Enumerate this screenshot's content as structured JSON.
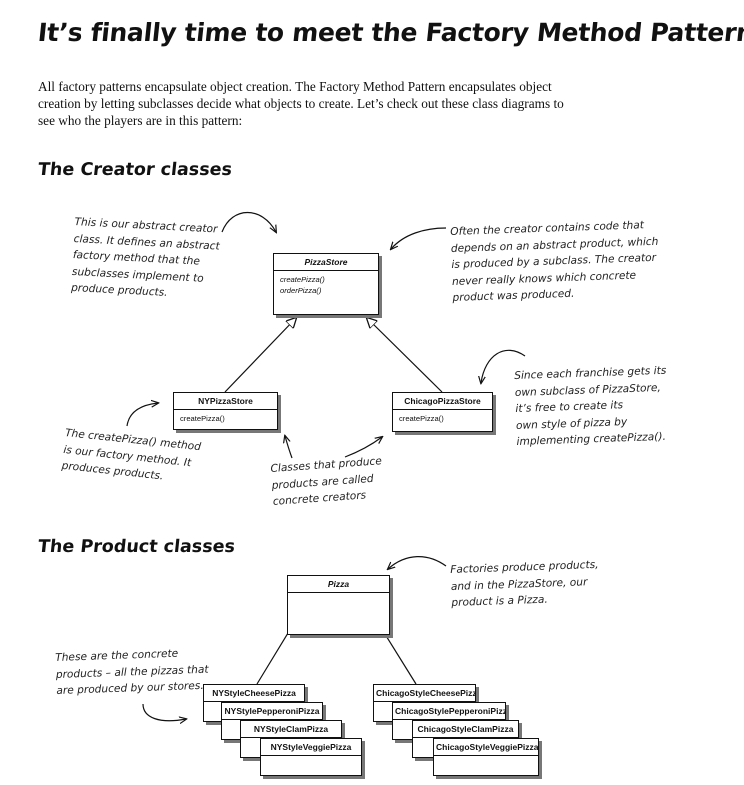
{
  "title": "It’s finally time to meet the Factory Method Pattern",
  "intro": "All factory patterns encapsulate object creation.  The Factory Method Pattern encapsulates object creation by letting subclasses decide what objects to create.  Let’s check out these class diagrams to see who the players are in this pattern:",
  "creator": {
    "heading": "The Creator classes",
    "abstract_class": {
      "name": "PizzaStore",
      "methods": [
        "createPizza()",
        "orderPizza()"
      ]
    },
    "subclasses": [
      {
        "name": "NYPizzaStore",
        "methods": [
          "createPizza()"
        ]
      },
      {
        "name": "ChicagoPizzaStore",
        "methods": [
          "createPizza()"
        ]
      }
    ],
    "notes": {
      "abstract_creator": "This is our abstract creator\nclass.  It defines an abstract\nfactory method that the\nsubclasses implement to\nproduce products.",
      "creator_code": "Often the creator contains code that\ndepends on an abstract product, which\nis produced by a subclass.  The creator\nnever really knows which concrete\nproduct was produced.",
      "franchise": "Since each franchise gets its\nown subclass of PizzaStore,\nit’s free to create its\nown style of pizza by\nimplementing createPizza().",
      "factory_method": "The createPizza() method\nis our factory method.  It\nproduces products.",
      "concrete_creators": "Classes that produce\nproducts are called\nconcrete creators"
    }
  },
  "product": {
    "heading": "The Product classes",
    "abstract_class": {
      "name": "Pizza"
    },
    "ny_products": [
      "NYStyleCheesePizza",
      "NYStylePepperoniPizza",
      "NYStyleClamPizza",
      "NYStyleVeggiePizza"
    ],
    "chicago_products": [
      "ChicagoStyleCheesePizza",
      "ChicagoStylePepperoniPizza",
      "ChicagoStyleClamPizza",
      "ChicagoStyleVeggiePizza"
    ],
    "notes": {
      "factories": "Factories produce products,\nand in the PizzaStore, our\nproduct is a Pizza.",
      "concrete_products": "These are the concrete\nproducts – all the pizzas that\nare produced by our stores."
    }
  }
}
